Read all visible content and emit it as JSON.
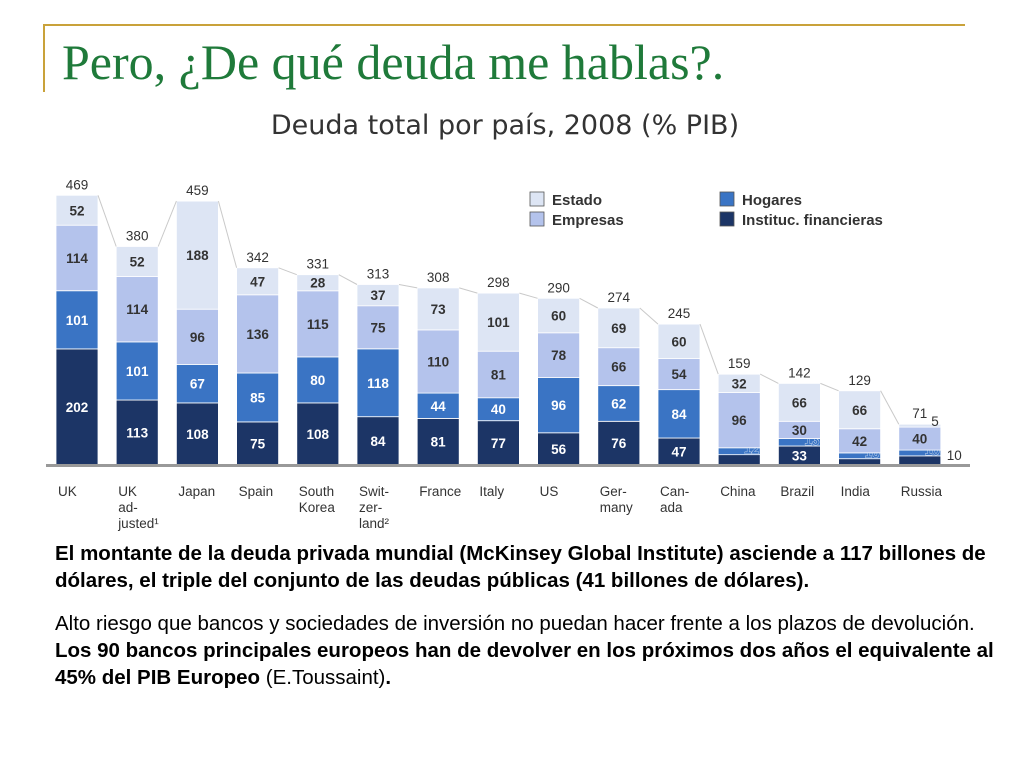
{
  "slide": {
    "title": "Pero, ¿De qué deuda me hablas?.",
    "colors": {
      "title": "#1f7a3a",
      "accent": "#c9a23a"
    }
  },
  "chart_data": {
    "type": "bar",
    "stacked": true,
    "title": "Deuda total por país, 2008 (% PIB)",
    "xlabel": "",
    "ylabel": "",
    "ylim": [
      0,
      480
    ],
    "grid": false,
    "legend_position": "top-right",
    "categories": [
      [
        "UK"
      ],
      [
        "UK",
        "ad-",
        "justed¹"
      ],
      [
        "Japan"
      ],
      [
        "Spain"
      ],
      [
        "South",
        "Korea"
      ],
      [
        "Swit-",
        "zer-",
        "land²"
      ],
      [
        "France"
      ],
      [
        "Italy"
      ],
      [
        "US"
      ],
      [
        "Ger-",
        "many"
      ],
      [
        "Can-",
        "ada"
      ],
      [
        "China"
      ],
      [
        "Brazil"
      ],
      [
        "India"
      ],
      [
        "Russia"
      ]
    ],
    "totals": [
      469,
      380,
      459,
      342,
      331,
      313,
      308,
      298,
      290,
      274,
      245,
      159,
      142,
      129,
      71
    ],
    "series": [
      {
        "name": "Instituc. financieras",
        "color": "#1c3566",
        "label_color": "#ffffff",
        "values": [
          202,
          113,
          108,
          75,
          108,
          84,
          81,
          77,
          56,
          76,
          47,
          18,
          33,
          11,
          16
        ]
      },
      {
        "name": "Hogares",
        "color": "#3a74c4",
        "label_color": "#ffffff",
        "values": [
          101,
          101,
          67,
          85,
          80,
          118,
          44,
          40,
          96,
          62,
          84,
          12,
          13,
          10,
          10
        ]
      },
      {
        "name": "Empresas",
        "color": "#b4c3ec",
        "label_color": "#333333",
        "values": [
          114,
          114,
          96,
          136,
          115,
          75,
          110,
          81,
          78,
          66,
          54,
          96,
          30,
          42,
          40
        ]
      },
      {
        "name": "Estado",
        "color": "#dde5f4",
        "label_color": "#333333",
        "values": [
          52,
          52,
          188,
          47,
          28,
          37,
          73,
          101,
          60,
          69,
          60,
          32,
          66,
          66,
          5
        ]
      }
    ]
  },
  "text": {
    "p1": "El montante de la deuda privada mundial (McKinsey Global Institute) asciende a 117 billones de dólares, el triple del conjunto de las deudas públicas (41 billones de dólares).",
    "p2_normal_1": "Alto riesgo que bancos y sociedades de inversión no puedan hacer frente a los plazos de devolución. ",
    "p2_bold": "Los 90 bancos principales europeos han de devolver en los próximos dos años el equivalente al 45% del PIB Europeo",
    "p2_normal_2": " (E.Toussaint)",
    "p2_end": "."
  }
}
